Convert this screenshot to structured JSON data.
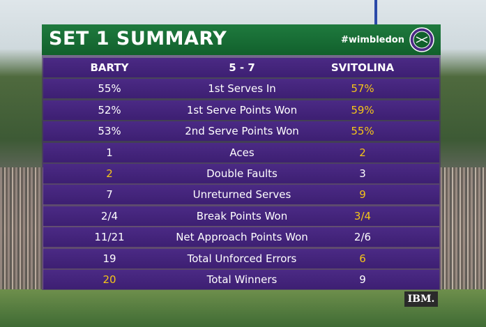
{
  "header": {
    "title": "SET 1 SUMMARY",
    "hashtag": "#wimbledon"
  },
  "players": {
    "left": "BARTY",
    "score": "5 - 7",
    "right": "SVITOLINA"
  },
  "table": {
    "rows": [
      {
        "left": "55%",
        "stat": "1st Serves In",
        "right": "57%",
        "highlight": "right"
      },
      {
        "left": "52%",
        "stat": "1st Serve Points Won",
        "right": "59%",
        "highlight": "right"
      },
      {
        "left": "53%",
        "stat": "2nd Serve Points Won",
        "right": "55%",
        "highlight": "right"
      },
      {
        "left": "1",
        "stat": "Aces",
        "right": "2",
        "highlight": "right"
      },
      {
        "left": "2",
        "stat": "Double Faults",
        "right": "3",
        "highlight": "left"
      },
      {
        "left": "7",
        "stat": "Unreturned Serves",
        "right": "9",
        "highlight": "right"
      },
      {
        "left": "2/4",
        "stat": "Break Points Won",
        "right": "3/4",
        "highlight": "right"
      },
      {
        "left": "11/21",
        "stat": "Net Approach Points Won",
        "right": "2/6"
      },
      {
        "left": "19",
        "stat": "Total Unforced Errors",
        "right": "6",
        "highlight": "right"
      },
      {
        "left": "20",
        "stat": "Total Winners",
        "right": "9",
        "highlight": "left"
      }
    ]
  },
  "sponsor": "IBM."
}
